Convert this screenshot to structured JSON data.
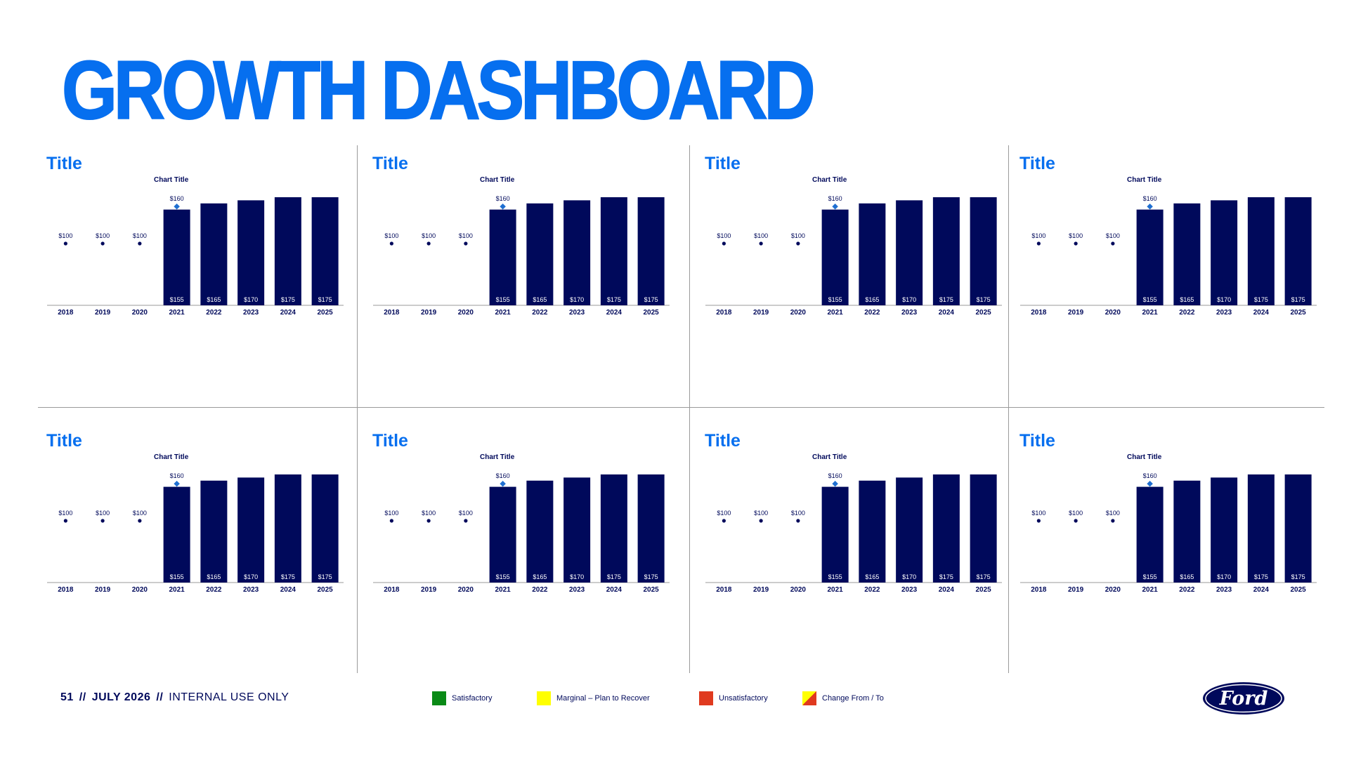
{
  "header": {
    "title": "GROWTH DASHBOARD"
  },
  "panels": [
    {
      "title": "Title",
      "chart_title": "Chart Title"
    },
    {
      "title": "Title",
      "chart_title": "Chart Title"
    },
    {
      "title": "Title",
      "chart_title": "Chart Title"
    },
    {
      "title": "Title",
      "chart_title": "Chart Title"
    },
    {
      "title": "Title",
      "chart_title": "Chart Title"
    },
    {
      "title": "Title",
      "chart_title": "Chart Title"
    },
    {
      "title": "Title",
      "chart_title": "Chart Title"
    },
    {
      "title": "Title",
      "chart_title": "Chart Title"
    }
  ],
  "chart_data": {
    "type": "bar",
    "title": "Chart Title",
    "categories": [
      "2018",
      "2019",
      "2020",
      "2021",
      "2022",
      "2023",
      "2024",
      "2025"
    ],
    "series": [
      {
        "type": "bar",
        "values": [
          null,
          null,
          null,
          155,
          165,
          170,
          175,
          175
        ],
        "labels": [
          null,
          null,
          null,
          "$155",
          "$165",
          "$170",
          "$175",
          "$175"
        ]
      },
      {
        "type": "point",
        "values": [
          100,
          100,
          100,
          160,
          null,
          null,
          null,
          null
        ],
        "labels": [
          "$100",
          "$100",
          "$100",
          "$160",
          null,
          null,
          null,
          null
        ]
      }
    ],
    "ylim": [
      0,
      175
    ],
    "grid": false,
    "legend": "none",
    "colors": {
      "bar": "#00095b",
      "point_marker": "#00095b",
      "highlight_marker": "#1f6fd1"
    },
    "panel_count": 8
  },
  "footer": {
    "page": "51",
    "separator": "//",
    "date": "JULY 2026",
    "classification": "INTERNAL USE ONLY"
  },
  "legend": [
    {
      "label": "Satisfactory",
      "color": "#0a8a16"
    },
    {
      "label": "Marginal – Plan to Recover",
      "color": "#ffff00"
    },
    {
      "label": "Unsatisfactory",
      "color": "#e03a1f"
    },
    {
      "label": "Change From / To",
      "color": "#e03a1f",
      "color2": "#ffff00"
    }
  ],
  "logo": {
    "text": "Ford",
    "color": "#00095b",
    "icon": "ford-oval-logo"
  }
}
